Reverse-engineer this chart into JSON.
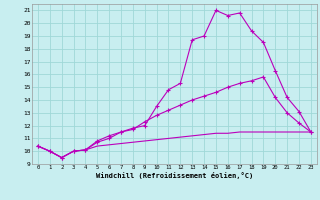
{
  "xlabel": "Windchill (Refroidissement éolien,°C)",
  "bg_color": "#c8eef0",
  "line_color": "#bb00bb",
  "grid_color": "#a0d8d8",
  "xlim": [
    -0.5,
    23.5
  ],
  "ylim": [
    9,
    21.5
  ],
  "yticks": [
    9,
    10,
    11,
    12,
    13,
    14,
    15,
    16,
    17,
    18,
    19,
    20,
    21
  ],
  "xticks": [
    0,
    1,
    2,
    3,
    4,
    5,
    6,
    7,
    8,
    9,
    10,
    11,
    12,
    13,
    14,
    15,
    16,
    17,
    18,
    19,
    20,
    21,
    22,
    23
  ],
  "line1_x": [
    0,
    1,
    2,
    3,
    4,
    5,
    6,
    7,
    8,
    9,
    10,
    11,
    12,
    13,
    14,
    15,
    16,
    17,
    18,
    19,
    20,
    21,
    22,
    23
  ],
  "line1_y": [
    10.4,
    10.0,
    9.5,
    10.0,
    10.1,
    10.7,
    11.0,
    11.5,
    11.8,
    12.0,
    13.5,
    14.8,
    15.3,
    18.7,
    19.0,
    21.0,
    20.6,
    20.8,
    19.4,
    18.5,
    16.3,
    14.2,
    13.1,
    11.5
  ],
  "line2_x": [
    0,
    1,
    2,
    3,
    4,
    5,
    6,
    7,
    8,
    9,
    10,
    11,
    12,
    13,
    14,
    15,
    16,
    17,
    18,
    19,
    20,
    21,
    22,
    23
  ],
  "line2_y": [
    10.4,
    10.0,
    9.5,
    10.0,
    10.1,
    10.8,
    11.2,
    11.5,
    11.7,
    12.3,
    12.8,
    13.2,
    13.6,
    14.0,
    14.3,
    14.6,
    15.0,
    15.3,
    15.5,
    15.8,
    14.2,
    13.0,
    12.2,
    11.5
  ],
  "line3_x": [
    0,
    1,
    2,
    3,
    4,
    5,
    6,
    7,
    8,
    9,
    10,
    11,
    12,
    13,
    14,
    15,
    16,
    17,
    18,
    19,
    20,
    21,
    22,
    23
  ],
  "line3_y": [
    10.4,
    10.0,
    9.5,
    10.0,
    10.1,
    10.4,
    10.5,
    10.6,
    10.7,
    10.8,
    10.9,
    11.0,
    11.1,
    11.2,
    11.3,
    11.4,
    11.4,
    11.5,
    11.5,
    11.5,
    11.5,
    11.5,
    11.5,
    11.5
  ]
}
